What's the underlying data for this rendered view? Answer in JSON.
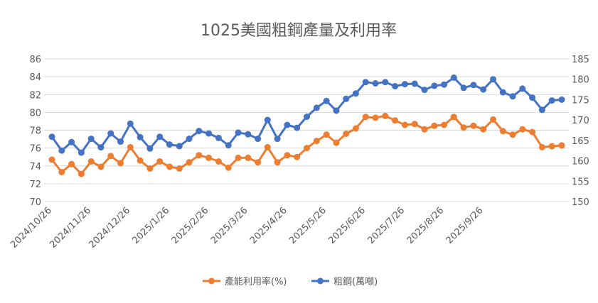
{
  "chart_data": {
    "type": "line",
    "title": "1025美國粗鋼產量及利用率",
    "xlabel": "",
    "ylabel": "",
    "ylim": [
      70,
      86
    ],
    "y2lim": [
      150,
      185
    ],
    "y_ticks": [
      "70",
      "72",
      "74",
      "76",
      "78",
      "80",
      "82",
      "84",
      "86"
    ],
    "y2_ticks": [
      "150",
      "155",
      "160",
      "165",
      "170",
      "175",
      "180",
      "185"
    ],
    "x_tick_labels": [
      "2024/10/26",
      "2024/11/26",
      "2024/12/26",
      "2025/1/26",
      "2025/2/26",
      "2025/3/26",
      "2025/4/26",
      "2025/5/26",
      "2025/6/26",
      "2025/7/26",
      "2025/8/26",
      "2025/9/26"
    ],
    "x_tick_index": [
      0,
      4,
      8,
      12,
      16,
      20,
      24,
      28,
      32,
      36,
      40,
      44
    ],
    "grid": "horizontal",
    "legend_position": "bottom",
    "series": [
      {
        "name": "產能利用率(%)",
        "axis": "left",
        "color": "#ED7D31",
        "values": [
          74.7,
          73.3,
          74.2,
          73.1,
          74.5,
          73.9,
          75.1,
          74.3,
          76.1,
          74.6,
          73.7,
          74.5,
          73.9,
          73.7,
          74.4,
          75.2,
          74.9,
          74.5,
          73.8,
          74.9,
          74.9,
          74.4,
          76.1,
          74.4,
          75.2,
          75.0,
          76.0,
          76.8,
          77.5,
          76.6,
          77.6,
          78.2,
          79.5,
          79.4,
          79.6,
          79.1,
          78.6,
          78.7,
          78.1,
          78.5,
          78.6,
          79.5,
          78.3,
          78.5,
          78.1,
          79.2,
          77.9,
          77.5,
          78.1,
          77.8,
          76.1,
          76.2,
          76.3
        ]
      },
      {
        "name": "粗鋼(萬噸)",
        "axis": "right",
        "color": "#4472C4",
        "values": [
          165.9,
          162.5,
          164.6,
          162.0,
          165.4,
          163.3,
          166.7,
          164.7,
          169.1,
          165.8,
          163.0,
          165.9,
          164.0,
          163.6,
          165.4,
          167.3,
          166.7,
          165.6,
          163.8,
          166.9,
          166.5,
          165.4,
          170.0,
          165.4,
          168.8,
          168.1,
          170.8,
          173.0,
          174.7,
          172.3,
          175.2,
          176.5,
          179.3,
          179.0,
          179.3,
          178.3,
          178.8,
          178.9,
          177.4,
          178.4,
          178.7,
          180.4,
          177.9,
          178.6,
          177.5,
          180.0,
          176.8,
          175.8,
          177.7,
          175.5,
          172.5,
          174.8,
          175.0
        ]
      }
    ]
  }
}
